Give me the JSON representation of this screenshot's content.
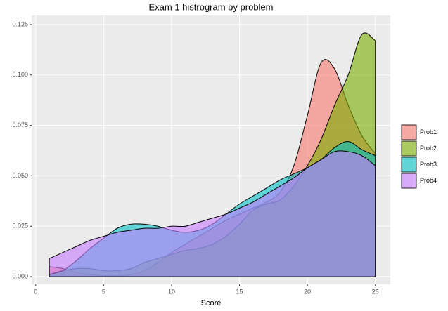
{
  "chart_data": {
    "type": "density",
    "title": "Exam 1 histrogram by problem",
    "x_label": "Score",
    "x": [
      1,
      2,
      3,
      4,
      5,
      6,
      7,
      8,
      9,
      10,
      11,
      12,
      13,
      14,
      15,
      16,
      17,
      18,
      19,
      20,
      21,
      22,
      23,
      24,
      25
    ],
    "series": [
      {
        "name": "Prob1",
        "color": "#F8766D",
        "values": [
          0.005,
          0.004,
          0.002,
          0.001,
          0.0005,
          0.0005,
          0.001,
          0.003,
          0.007,
          0.012,
          0.016,
          0.02,
          0.024,
          0.028,
          0.031,
          0.034,
          0.037,
          0.042,
          0.055,
          0.08,
          0.106,
          0.103,
          0.085,
          0.07,
          0.061
        ]
      },
      {
        "name": "Prob2",
        "color": "#7CAE00",
        "values": [
          0.001,
          0.003,
          0.004,
          0.004,
          0.003,
          0.003,
          0.004,
          0.007,
          0.009,
          0.011,
          0.013,
          0.014,
          0.016,
          0.02,
          0.026,
          0.033,
          0.036,
          0.038,
          0.045,
          0.055,
          0.068,
          0.085,
          0.1,
          0.12,
          0.117
        ]
      },
      {
        "name": "Prob3",
        "color": "#00BFC4",
        "values": [
          0.001,
          0.003,
          0.008,
          0.014,
          0.019,
          0.024,
          0.026,
          0.026,
          0.025,
          0.023,
          0.022,
          0.023,
          0.026,
          0.031,
          0.036,
          0.04,
          0.044,
          0.048,
          0.051,
          0.054,
          0.058,
          0.064,
          0.067,
          0.063,
          0.06
        ]
      },
      {
        "name": "Prob4",
        "color": "#C77CFF",
        "values": [
          0.009,
          0.012,
          0.015,
          0.018,
          0.02,
          0.022,
          0.023,
          0.024,
          0.024,
          0.025,
          0.025,
          0.027,
          0.029,
          0.031,
          0.034,
          0.037,
          0.041,
          0.045,
          0.049,
          0.054,
          0.058,
          0.062,
          0.062,
          0.06,
          0.055
        ]
      }
    ],
    "xlim": [
      -0.3,
      26.1
    ],
    "ylim": [
      -0.0038,
      0.1295
    ],
    "xticks": [
      0,
      5,
      10,
      15,
      20,
      25
    ],
    "yticks": [
      {
        "value": 0,
        "label": "0.000"
      },
      0.025,
      {
        "value": 0.05,
        "label": "0.050"
      },
      0.075,
      {
        "value": 0.1,
        "label": "0.100"
      },
      0.125
    ],
    "grid": true,
    "legend": "right",
    "opacity": 0.6
  }
}
